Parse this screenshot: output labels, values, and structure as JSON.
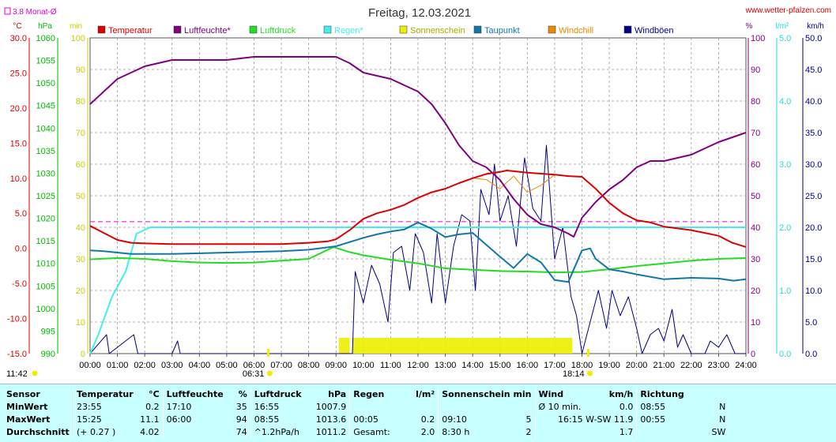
{
  "header": {
    "title": "Freitag, 12.03.2021",
    "website": "www.wetter-pfalzen.com",
    "month_avg_label": "3.8 Monat-Ø"
  },
  "chart_data": {
    "type": "line",
    "title": "Freitag, 12.03.2021",
    "x_ticks": [
      "00:00",
      "01:00",
      "02:00",
      "03:00",
      "04:00",
      "05:00",
      "06:00",
      "07:00",
      "08:00",
      "09:00",
      "10:00",
      "11:00",
      "12:00",
      "13:00",
      "14:00",
      "15:00",
      "16:00",
      "17:00",
      "18:00",
      "19:00",
      "20:00",
      "21:00",
      "22:00",
      "23:00",
      "24:00"
    ],
    "x_range": [
      0,
      24
    ],
    "sunrise": "06:31",
    "sunset": "18:14",
    "month_avg_temp": 3.8,
    "axes": {
      "temp": {
        "unit": "°C",
        "range": [
          -15,
          30
        ],
        "ticks": [
          "30.0",
          "25.0",
          "20.0",
          "15.0",
          "10.0",
          "5.0",
          "0.0",
          "-5.0",
          "-10.0",
          "-15.0"
        ]
      },
      "pressure": {
        "unit": "hPa",
        "range": [
          990,
          1060
        ],
        "ticks": [
          "1060",
          "1055",
          "1050",
          "1045",
          "1040",
          "1035",
          "1030",
          "1025",
          "1020",
          "1015",
          "1010",
          "1005",
          "1000",
          "995",
          "990"
        ]
      },
      "minutes": {
        "unit": "min",
        "range": [
          0,
          100
        ],
        "ticks": [
          "100",
          "90",
          "80",
          "70",
          "60",
          "50",
          "40",
          "30",
          "20",
          "10",
          "0"
        ]
      },
      "humidity": {
        "unit": "%",
        "range": [
          0,
          100
        ],
        "ticks": [
          "100",
          "90",
          "80",
          "70",
          "60",
          "50",
          "40",
          "30",
          "20",
          "10",
          "0"
        ]
      },
      "rain": {
        "unit": "l/m²",
        "range": [
          0,
          5
        ],
        "ticks": [
          "5.0",
          "4.0",
          "3.0",
          "2.0",
          "1.0",
          "0.0"
        ]
      },
      "wind": {
        "unit": "km/h",
        "range": [
          0,
          50
        ],
        "ticks": [
          "50.0",
          "45.0",
          "40.0",
          "35.0",
          "30.0",
          "25.0",
          "20.0",
          "15.0",
          "10.0",
          "5.0",
          "0.0"
        ]
      }
    },
    "legend": [
      {
        "name": "Temperatur",
        "color": "#dd0000"
      },
      {
        "name": "Luftfeuchte*",
        "color": "#800080"
      },
      {
        "name": "Luftdruck",
        "color": "#22dd22"
      },
      {
        "name": "Regen*",
        "color": "#44eeee"
      },
      {
        "name": "Sonnenschein",
        "color": "#eeee00"
      },
      {
        "name": "Taupunkt",
        "color": "#1177aa"
      },
      {
        "name": "Windchill",
        "color": "#ee8800"
      },
      {
        "name": "Windböen",
        "color": "#000088"
      }
    ],
    "series": {
      "temperature": [
        [
          0,
          3.2
        ],
        [
          0.5,
          2.2
        ],
        [
          1,
          1.2
        ],
        [
          1.5,
          0.8
        ],
        [
          2,
          0.7
        ],
        [
          3,
          0.6
        ],
        [
          4,
          0.6
        ],
        [
          5,
          0.6
        ],
        [
          6,
          0.6
        ],
        [
          7,
          0.6
        ],
        [
          8,
          0.8
        ],
        [
          8.7,
          1.0
        ],
        [
          9,
          1.3
        ],
        [
          9.5,
          2.6
        ],
        [
          10,
          4.2
        ],
        [
          10.5,
          5.0
        ],
        [
          11,
          5.5
        ],
        [
          11.5,
          6.2
        ],
        [
          12,
          7.2
        ],
        [
          12.5,
          8.0
        ],
        [
          13,
          8.5
        ],
        [
          13.5,
          9.3
        ],
        [
          14,
          10.0
        ],
        [
          14.5,
          10.6
        ],
        [
          15,
          10.9
        ],
        [
          15.25,
          11.1
        ],
        [
          16,
          10.8
        ],
        [
          17,
          10.5
        ],
        [
          17.5,
          10.3
        ],
        [
          18,
          10.2
        ],
        [
          18.5,
          8.5
        ],
        [
          19,
          6.5
        ],
        [
          19.5,
          5.0
        ],
        [
          20,
          4.0
        ],
        [
          20.5,
          3.7
        ],
        [
          21,
          3.1
        ],
        [
          22,
          2.6
        ],
        [
          23,
          1.8
        ],
        [
          23.5,
          0.8
        ],
        [
          24,
          0.2
        ]
      ],
      "humidity": [
        [
          0,
          79
        ],
        [
          0.5,
          83
        ],
        [
          1,
          87
        ],
        [
          1.5,
          89
        ],
        [
          2,
          91
        ],
        [
          2.5,
          92
        ],
        [
          3,
          93
        ],
        [
          4,
          93
        ],
        [
          5,
          93
        ],
        [
          6,
          94
        ],
        [
          7,
          94
        ],
        [
          8,
          94
        ],
        [
          8.5,
          94
        ],
        [
          9,
          94
        ],
        [
          9.5,
          92
        ],
        [
          10,
          89
        ],
        [
          10.5,
          88
        ],
        [
          11,
          87
        ],
        [
          11.5,
          85
        ],
        [
          12,
          83
        ],
        [
          12.5,
          79
        ],
        [
          13,
          73
        ],
        [
          13.5,
          66
        ],
        [
          14,
          61
        ],
        [
          14.5,
          59
        ],
        [
          15,
          55
        ],
        [
          15.5,
          49
        ],
        [
          16,
          44
        ],
        [
          16.5,
          41
        ],
        [
          17,
          40
        ],
        [
          17.5,
          38
        ],
        [
          17.7,
          37
        ],
        [
          18,
          43
        ],
        [
          18.5,
          48
        ],
        [
          19,
          52
        ],
        [
          19.5,
          55
        ],
        [
          20,
          59
        ],
        [
          20.5,
          61
        ],
        [
          21,
          61
        ],
        [
          22,
          63
        ],
        [
          22.5,
          65
        ],
        [
          23,
          67
        ],
        [
          24,
          70
        ]
      ],
      "pressure": [
        [
          0,
          1010.9
        ],
        [
          1,
          1011.2
        ],
        [
          2,
          1011.0
        ],
        [
          3,
          1010.5
        ],
        [
          4,
          1010.2
        ],
        [
          5,
          1010.1
        ],
        [
          6,
          1010.2
        ],
        [
          7,
          1010.6
        ],
        [
          8,
          1011.0
        ],
        [
          8.9,
          1013.6
        ],
        [
          9.5,
          1012.5
        ],
        [
          10,
          1011.8
        ],
        [
          11,
          1010.8
        ],
        [
          12,
          1010.0
        ],
        [
          13,
          1008.9
        ],
        [
          14,
          1008.6
        ],
        [
          15,
          1008.3
        ],
        [
          16,
          1008.2
        ],
        [
          17,
          1008.0
        ],
        [
          18,
          1008.1
        ],
        [
          19,
          1008.7
        ],
        [
          20,
          1009.4
        ],
        [
          21,
          1010.0
        ],
        [
          22,
          1010.6
        ],
        [
          23,
          1011.0
        ],
        [
          24,
          1011.2
        ]
      ],
      "dewpoint": [
        [
          0,
          -0.3
        ],
        [
          0.5,
          -0.4
        ],
        [
          1,
          -0.6
        ],
        [
          1.5,
          -0.8
        ],
        [
          2,
          -0.8
        ],
        [
          3,
          -0.8
        ],
        [
          4,
          -0.7
        ],
        [
          5,
          -0.6
        ],
        [
          6,
          -0.5
        ],
        [
          7,
          -0.4
        ],
        [
          8,
          -0.2
        ],
        [
          9,
          0.3
        ],
        [
          9.5,
          0.9
        ],
        [
          10,
          1.5
        ],
        [
          10.5,
          2.0
        ],
        [
          11,
          2.4
        ],
        [
          11.5,
          2.7
        ],
        [
          12,
          3.7
        ],
        [
          12.5,
          2.8
        ],
        [
          13,
          1.6
        ],
        [
          13.5,
          2.0
        ],
        [
          14,
          2.2
        ],
        [
          14.5,
          0.5
        ],
        [
          15,
          -1.2
        ],
        [
          15.5,
          -2.8
        ],
        [
          16,
          -0.8
        ],
        [
          16.5,
          -2.0
        ],
        [
          17,
          -4.5
        ],
        [
          17.5,
          -4.8
        ],
        [
          18,
          -0.3
        ],
        [
          18.3,
          0.0
        ],
        [
          18.5,
          -1.5
        ],
        [
          19,
          -3.0
        ],
        [
          19.5,
          -3.3
        ],
        [
          20,
          -3.7
        ],
        [
          21,
          -4.4
        ],
        [
          22,
          -4.2
        ],
        [
          23,
          -4.3
        ],
        [
          23.55,
          -4.6
        ],
        [
          24,
          -4.4
        ]
      ],
      "windchill": [
        [
          14,
          10.0
        ],
        [
          14.5,
          9.8
        ],
        [
          15,
          8.5
        ],
        [
          15.5,
          10.3
        ],
        [
          16,
          8.0
        ],
        [
          16.5,
          9.0
        ],
        [
          17,
          10.5
        ]
      ],
      "gusts": [
        [
          0,
          0
        ],
        [
          0.6,
          3
        ],
        [
          0.7,
          0
        ],
        [
          1.6,
          3
        ],
        [
          1.75,
          0
        ],
        [
          3,
          0
        ],
        [
          3.2,
          2
        ],
        [
          3.3,
          0
        ],
        [
          9.6,
          0
        ],
        [
          9.7,
          13
        ],
        [
          10,
          8
        ],
        [
          10.3,
          14
        ],
        [
          10.6,
          11
        ],
        [
          10.9,
          5
        ],
        [
          11.1,
          16
        ],
        [
          11.4,
          17
        ],
        [
          11.7,
          10
        ],
        [
          11.9,
          19
        ],
        [
          12.2,
          16
        ],
        [
          12.5,
          8
        ],
        [
          12.7,
          19
        ],
        [
          13,
          8
        ],
        [
          13.3,
          17
        ],
        [
          13.6,
          22
        ],
        [
          13.9,
          21
        ],
        [
          14.1,
          10
        ],
        [
          14.3,
          26
        ],
        [
          14.6,
          22
        ],
        [
          14.8,
          30
        ],
        [
          15,
          21
        ],
        [
          15.3,
          25
        ],
        [
          15.6,
          17
        ],
        [
          15.9,
          31
        ],
        [
          16.2,
          23
        ],
        [
          16.5,
          21
        ],
        [
          16.7,
          33
        ],
        [
          17,
          15
        ],
        [
          17.3,
          20
        ],
        [
          17.6,
          9
        ],
        [
          17.8,
          6
        ],
        [
          18,
          0
        ],
        [
          18.3,
          5
        ],
        [
          18.6,
          10
        ],
        [
          18.9,
          4
        ],
        [
          19.1,
          10
        ],
        [
          19.4,
          6
        ],
        [
          19.7,
          9
        ],
        [
          20,
          4
        ],
        [
          20.2,
          0
        ],
        [
          20.5,
          3
        ],
        [
          20.8,
          4
        ],
        [
          21,
          2
        ],
        [
          21.3,
          7
        ],
        [
          21.5,
          1
        ],
        [
          21.7,
          3
        ],
        [
          22,
          0
        ],
        [
          22.5,
          0
        ],
        [
          22.7,
          2
        ],
        [
          23,
          1
        ],
        [
          23.3,
          3
        ],
        [
          23.6,
          0
        ],
        [
          24,
          0
        ]
      ],
      "rain_cumulative": [
        [
          0,
          0
        ],
        [
          0.3,
          0.3
        ],
        [
          0.8,
          0.9
        ],
        [
          1.3,
          1.3
        ],
        [
          1.7,
          1.9
        ],
        [
          2.2,
          2.0
        ],
        [
          3,
          2.0
        ],
        [
          24,
          2.0
        ]
      ],
      "sunshine_bar": [
        [
          9.1,
          9.5
        ],
        [
          9.6,
          17.65
        ]
      ]
    }
  },
  "stats": {
    "columns": [
      "Sensor",
      "Temperatur",
      "°C",
      "Luftfeuchte",
      "%",
      "Luftdruck",
      "hPa",
      "Regen",
      "l/m²",
      "Sonnenschein min",
      "Wind",
      "km/h",
      "Richtung"
    ],
    "rows": [
      [
        "MinWert",
        "23:55",
        "0.2",
        "17:10",
        "35",
        "16:55",
        "1007.9",
        "",
        "",
        "",
        "Ø 10 min.",
        "0.0",
        "08:55",
        "N"
      ],
      [
        "MaxWert",
        "15:25",
        "11.1",
        "06:00",
        "94",
        "08:55",
        "1013.6",
        "00:05",
        "0.2",
        "09:10",
        "5",
        "16:15  W-SW 11.9",
        "00:55",
        "N"
      ],
      [
        "Durchschnitt",
        "(+ 0.27 )",
        "4.02",
        "",
        "74",
        "^1.2hPa/h",
        "1011.2",
        "Gesamt:",
        "2.0",
        "8:30 h",
        "2",
        "1.7",
        "",
        "SW"
      ]
    ]
  },
  "colors": {
    "temperature": "#dd0000",
    "humidity": "#800080",
    "pressure": "#22dd22",
    "rain": "#44eeee",
    "sunshine": "#eeee00",
    "dewpoint": "#1177aa",
    "windchill": "#ee8800",
    "gusts": "#000088",
    "footer_bg": "#c8ffff"
  }
}
